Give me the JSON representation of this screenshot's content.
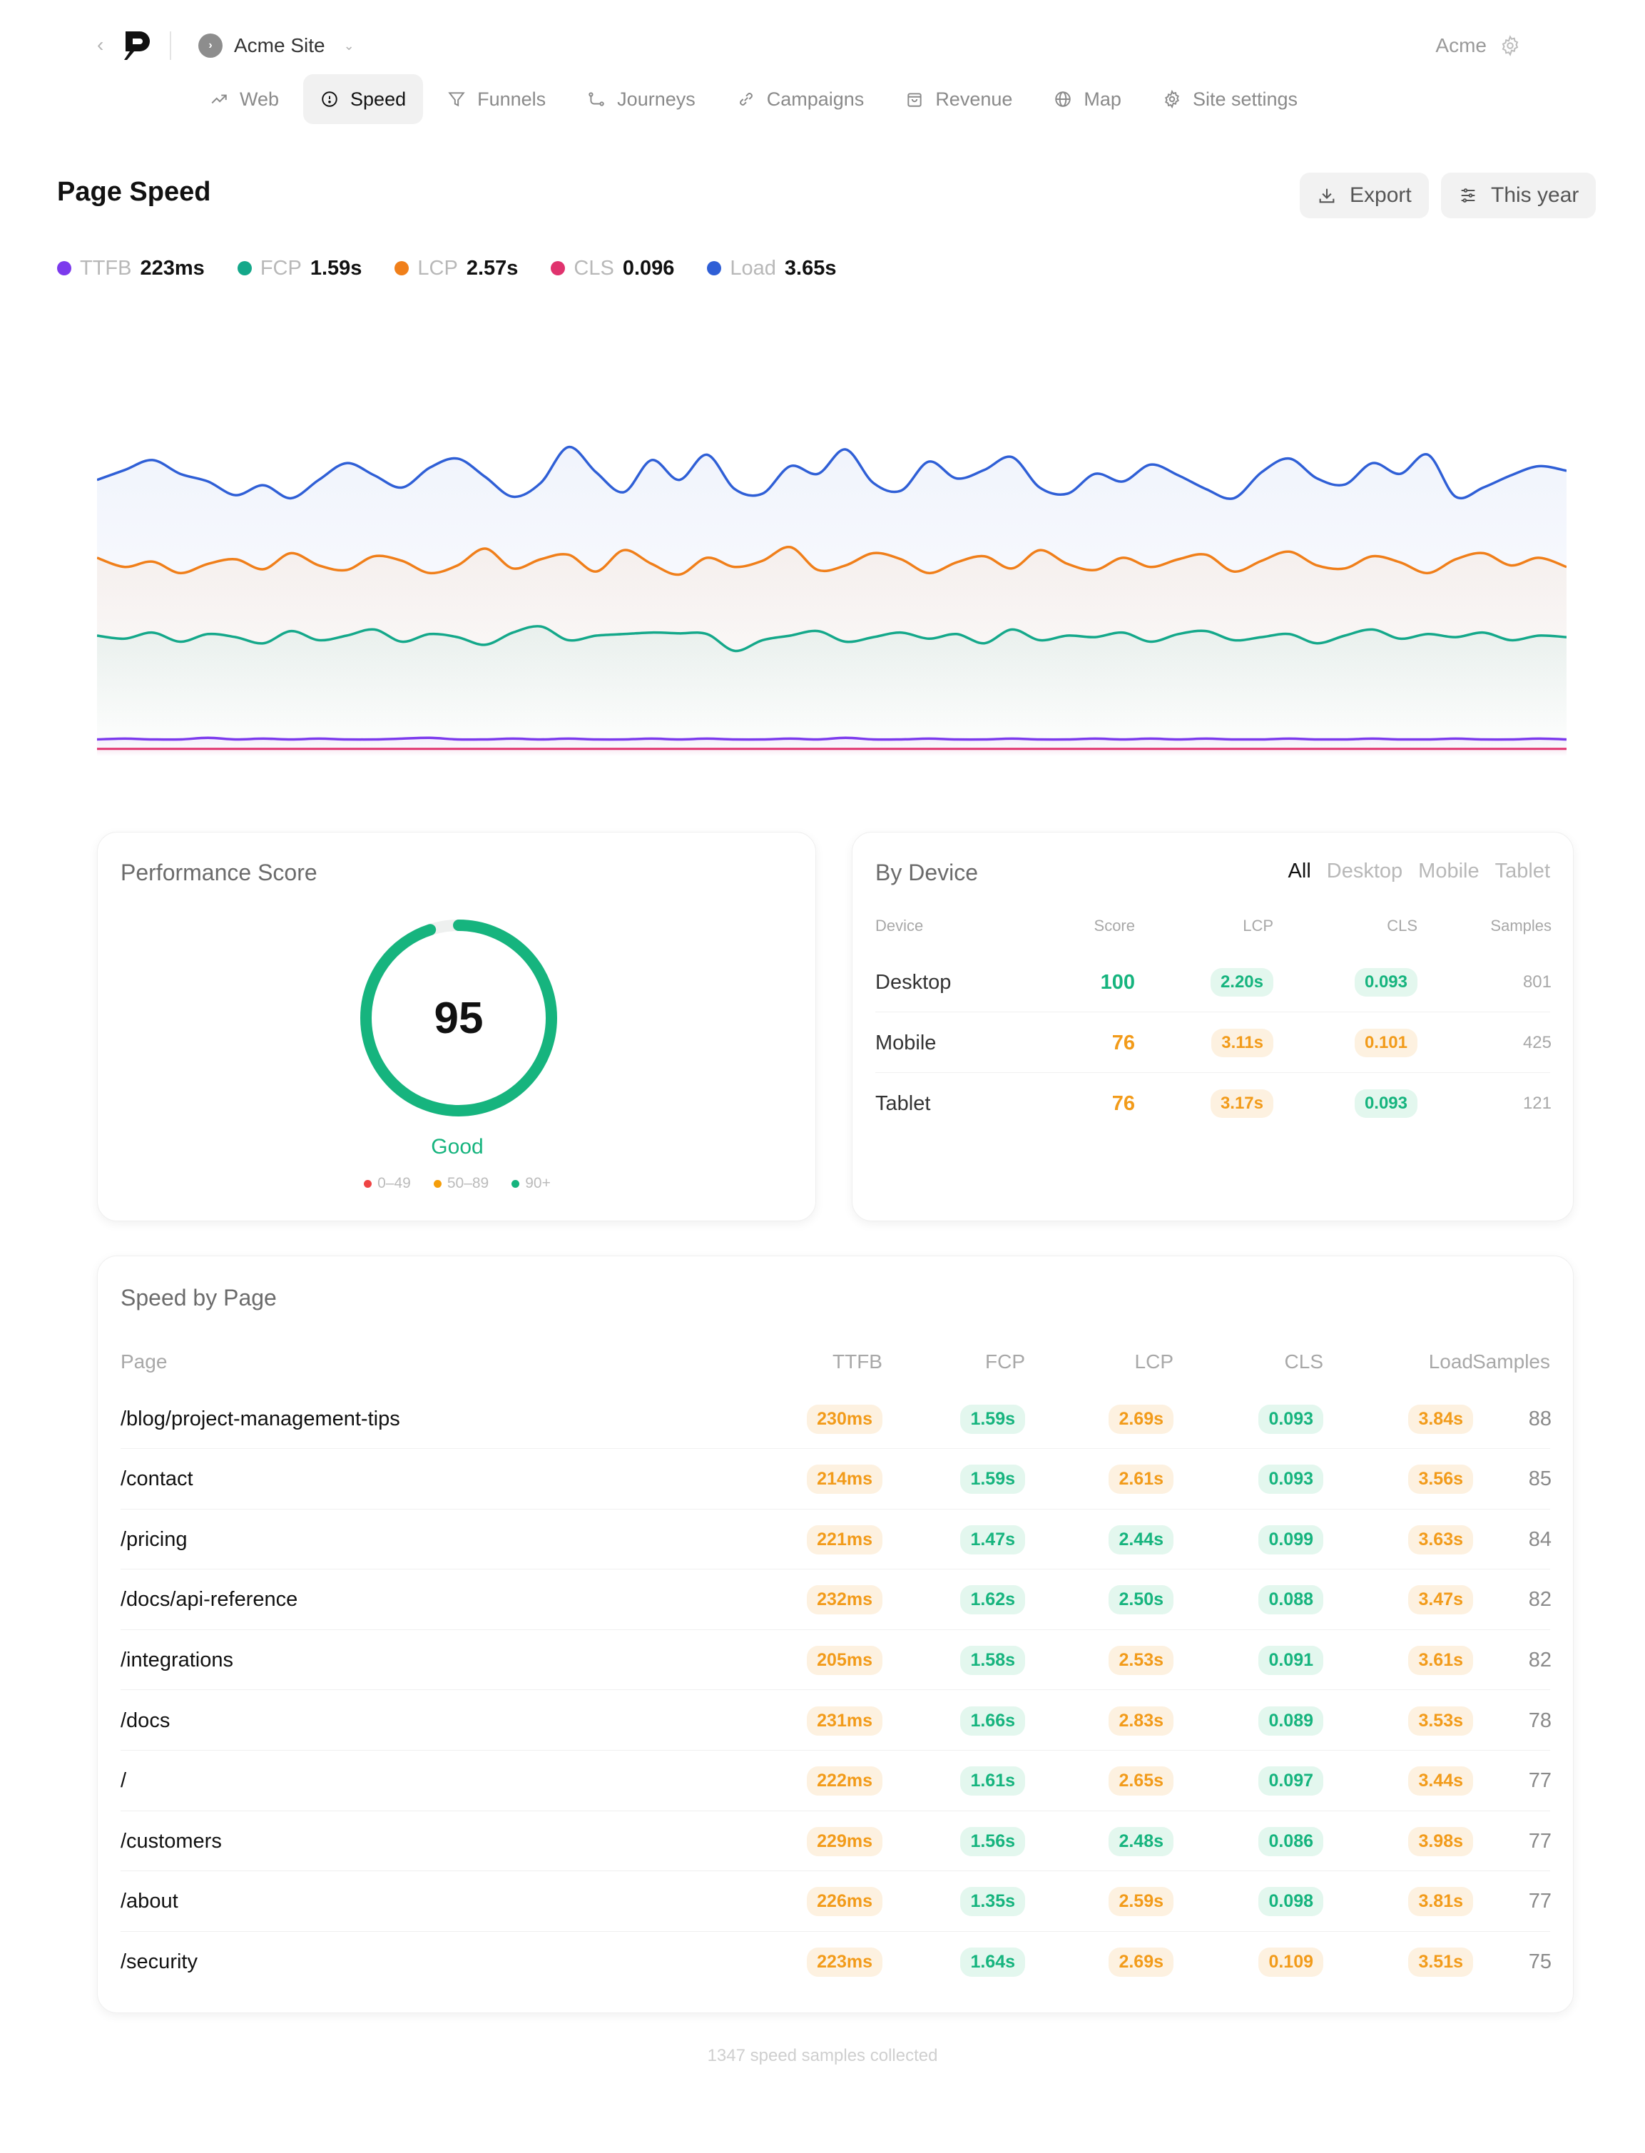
{
  "app": {
    "site_name": "Acme Site",
    "org_name": "Acme"
  },
  "nav": {
    "tabs": [
      {
        "label": "Web",
        "icon": "trend-icon"
      },
      {
        "label": "Speed",
        "icon": "gauge-icon",
        "active": true
      },
      {
        "label": "Funnels",
        "icon": "funnel-icon"
      },
      {
        "label": "Journeys",
        "icon": "route-icon"
      },
      {
        "label": "Campaigns",
        "icon": "link-icon"
      },
      {
        "label": "Revenue",
        "icon": "bag-icon"
      },
      {
        "label": "Map",
        "icon": "globe-icon"
      },
      {
        "label": "Site settings",
        "icon": "gear-icon"
      }
    ]
  },
  "header": {
    "title": "Page Speed",
    "export_label": "Export",
    "range_label": "This year"
  },
  "metrics": [
    {
      "name": "TTFB",
      "value": "223ms",
      "color": "#7c3aed"
    },
    {
      "name": "FCP",
      "value": "1.59s",
      "color": "#14a88a"
    },
    {
      "name": "LCP",
      "value": "2.57s",
      "color": "#f07f1a"
    },
    {
      "name": "CLS",
      "value": "0.096",
      "color": "#e0336e"
    },
    {
      "name": "Load",
      "value": "3.65s",
      "color": "#2f5fd6"
    }
  ],
  "chart_data": {
    "type": "line",
    "title": "",
    "xlabel": "",
    "ylabel": "",
    "grid": false,
    "legend": "top-left",
    "series": [
      {
        "name": "Load",
        "color": "#2f5fd6",
        "values": [
          3.62,
          3.75,
          3.88,
          3.7,
          3.6,
          3.42,
          3.55,
          3.38,
          3.62,
          3.84,
          3.68,
          3.52,
          3.78,
          3.9,
          3.66,
          3.4,
          3.58,
          4.05,
          3.72,
          3.46,
          3.88,
          3.62,
          3.95,
          3.5,
          3.44,
          3.8,
          3.7,
          4.02,
          3.58,
          3.48,
          3.86,
          3.64,
          3.75,
          3.92,
          3.52,
          3.44,
          3.7,
          3.6,
          3.82,
          3.68,
          3.5,
          3.38,
          3.72,
          3.9,
          3.64,
          3.56,
          3.84,
          3.7,
          3.95,
          3.4,
          3.52,
          3.68,
          3.8,
          3.74
        ]
      },
      {
        "name": "LCP",
        "color": "#f07f1a",
        "values": [
          2.6,
          2.48,
          2.55,
          2.4,
          2.52,
          2.58,
          2.45,
          2.66,
          2.5,
          2.44,
          2.62,
          2.56,
          2.4,
          2.5,
          2.72,
          2.46,
          2.58,
          2.64,
          2.42,
          2.7,
          2.52,
          2.38,
          2.6,
          2.48,
          2.56,
          2.74,
          2.44,
          2.5,
          2.66,
          2.58,
          2.4,
          2.54,
          2.62,
          2.46,
          2.7,
          2.52,
          2.44,
          2.6,
          2.48,
          2.58,
          2.64,
          2.42,
          2.56,
          2.68,
          2.5,
          2.46,
          2.62,
          2.54,
          2.4,
          2.58,
          2.66,
          2.5,
          2.6,
          2.48
        ]
      },
      {
        "name": "FCP",
        "color": "#14a88a",
        "values": [
          1.58,
          1.54,
          1.62,
          1.5,
          1.6,
          1.56,
          1.48,
          1.64,
          1.52,
          1.58,
          1.66,
          1.5,
          1.6,
          1.56,
          1.46,
          1.62,
          1.7,
          1.52,
          1.58,
          1.6,
          1.62,
          1.61,
          1.6,
          1.38,
          1.52,
          1.58,
          1.64,
          1.5,
          1.56,
          1.62,
          1.54,
          1.6,
          1.48,
          1.66,
          1.52,
          1.58,
          1.56,
          1.62,
          1.5,
          1.6,
          1.64,
          1.52,
          1.56,
          1.6,
          1.48,
          1.58,
          1.66,
          1.54,
          1.6,
          1.56,
          1.62,
          1.52,
          1.58,
          1.56
        ]
      },
      {
        "name": "TTFB",
        "color": "#7c3aed",
        "values": [
          0.22,
          0.23,
          0.22,
          0.22,
          0.24,
          0.22,
          0.23,
          0.22,
          0.23,
          0.22,
          0.22,
          0.23,
          0.24,
          0.22,
          0.22,
          0.23,
          0.22,
          0.23,
          0.22,
          0.22,
          0.23,
          0.22,
          0.23,
          0.22,
          0.22,
          0.23,
          0.22,
          0.24,
          0.22,
          0.22,
          0.23,
          0.22,
          0.22,
          0.23,
          0.22,
          0.22,
          0.23,
          0.22,
          0.23,
          0.22,
          0.23,
          0.22,
          0.22,
          0.23,
          0.22,
          0.22,
          0.23,
          0.22,
          0.22,
          0.23,
          0.22,
          0.22,
          0.23,
          0.22
        ]
      },
      {
        "name": "CLS",
        "color": "#e0336e",
        "values": [
          0.096,
          0.096,
          0.096,
          0.096,
          0.096,
          0.096,
          0.096,
          0.096,
          0.096,
          0.096,
          0.096,
          0.096,
          0.096,
          0.096,
          0.096,
          0.096,
          0.096,
          0.096,
          0.096,
          0.096,
          0.096,
          0.096,
          0.096,
          0.096,
          0.096,
          0.096,
          0.096,
          0.096,
          0.096,
          0.096,
          0.096,
          0.096,
          0.096,
          0.096,
          0.096,
          0.096,
          0.096,
          0.096,
          0.096,
          0.096,
          0.096,
          0.096,
          0.096,
          0.096,
          0.096,
          0.096,
          0.096,
          0.096,
          0.096,
          0.096,
          0.096,
          0.096,
          0.096,
          0.096
        ]
      }
    ],
    "ylim": [
      0,
      4.3
    ]
  },
  "performance": {
    "title": "Performance Score",
    "score": "95",
    "score_fraction": 0.95,
    "rating": "Good",
    "legend": [
      {
        "label": "0–49",
        "color": "#ef4444"
      },
      {
        "label": "50–89",
        "color": "#f59e0b"
      },
      {
        "label": "90+",
        "color": "#16b47e"
      }
    ]
  },
  "by_device": {
    "title": "By Device",
    "filters": [
      "All",
      "Desktop",
      "Mobile",
      "Tablet"
    ],
    "columns": [
      "Device",
      "Score",
      "LCP",
      "CLS",
      "Samples"
    ],
    "rows": [
      {
        "device": "Desktop",
        "score": "100",
        "score_status": "g",
        "lcp": "2.20s",
        "lcp_status": "g",
        "cls": "0.093",
        "cls_status": "g",
        "samples": "801"
      },
      {
        "device": "Mobile",
        "score": "76",
        "score_status": "o",
        "lcp": "3.11s",
        "lcp_status": "o",
        "cls": "0.101",
        "cls_status": "o",
        "samples": "425"
      },
      {
        "device": "Tablet",
        "score": "76",
        "score_status": "o",
        "lcp": "3.17s",
        "lcp_status": "o",
        "cls": "0.093",
        "cls_status": "g",
        "samples": "121"
      }
    ]
  },
  "speed_by_page": {
    "title": "Speed by Page",
    "columns": [
      "Page",
      "TTFB",
      "FCP",
      "LCP",
      "CLS",
      "Load",
      "Samples"
    ],
    "rows": [
      {
        "page": "/blog/project-management-tips",
        "ttfb": "230ms",
        "fcp": "1.59s",
        "lcp": "2.69s",
        "lcp_status": "o",
        "cls": "0.093",
        "cls_status": "g",
        "load": "3.84s",
        "samples": "88"
      },
      {
        "page": "/contact",
        "ttfb": "214ms",
        "fcp": "1.59s",
        "lcp": "2.61s",
        "lcp_status": "o",
        "cls": "0.093",
        "cls_status": "g",
        "load": "3.56s",
        "samples": "85"
      },
      {
        "page": "/pricing",
        "ttfb": "221ms",
        "fcp": "1.47s",
        "lcp": "2.44s",
        "lcp_status": "g",
        "cls": "0.099",
        "cls_status": "g",
        "load": "3.63s",
        "samples": "84"
      },
      {
        "page": "/docs/api-reference",
        "ttfb": "232ms",
        "fcp": "1.62s",
        "lcp": "2.50s",
        "lcp_status": "g",
        "cls": "0.088",
        "cls_status": "g",
        "load": "3.47s",
        "samples": "82"
      },
      {
        "page": "/integrations",
        "ttfb": "205ms",
        "fcp": "1.58s",
        "lcp": "2.53s",
        "lcp_status": "o",
        "cls": "0.091",
        "cls_status": "g",
        "load": "3.61s",
        "samples": "82"
      },
      {
        "page": "/docs",
        "ttfb": "231ms",
        "fcp": "1.66s",
        "lcp": "2.83s",
        "lcp_status": "o",
        "cls": "0.089",
        "cls_status": "g",
        "load": "3.53s",
        "samples": "78"
      },
      {
        "page": "/",
        "ttfb": "222ms",
        "fcp": "1.61s",
        "lcp": "2.65s",
        "lcp_status": "o",
        "cls": "0.097",
        "cls_status": "g",
        "load": "3.44s",
        "samples": "77"
      },
      {
        "page": "/customers",
        "ttfb": "229ms",
        "fcp": "1.56s",
        "lcp": "2.48s",
        "lcp_status": "g",
        "cls": "0.086",
        "cls_status": "g",
        "load": "3.98s",
        "samples": "77"
      },
      {
        "page": "/about",
        "ttfb": "226ms",
        "fcp": "1.35s",
        "lcp": "2.59s",
        "lcp_status": "o",
        "cls": "0.098",
        "cls_status": "g",
        "load": "3.81s",
        "samples": "77"
      },
      {
        "page": "/security",
        "ttfb": "223ms",
        "fcp": "1.64s",
        "lcp": "2.69s",
        "lcp_status": "o",
        "cls": "0.109",
        "cls_status": "o",
        "load": "3.51s",
        "samples": "75"
      }
    ]
  },
  "footer": {
    "note": "1347 speed samples collected"
  }
}
